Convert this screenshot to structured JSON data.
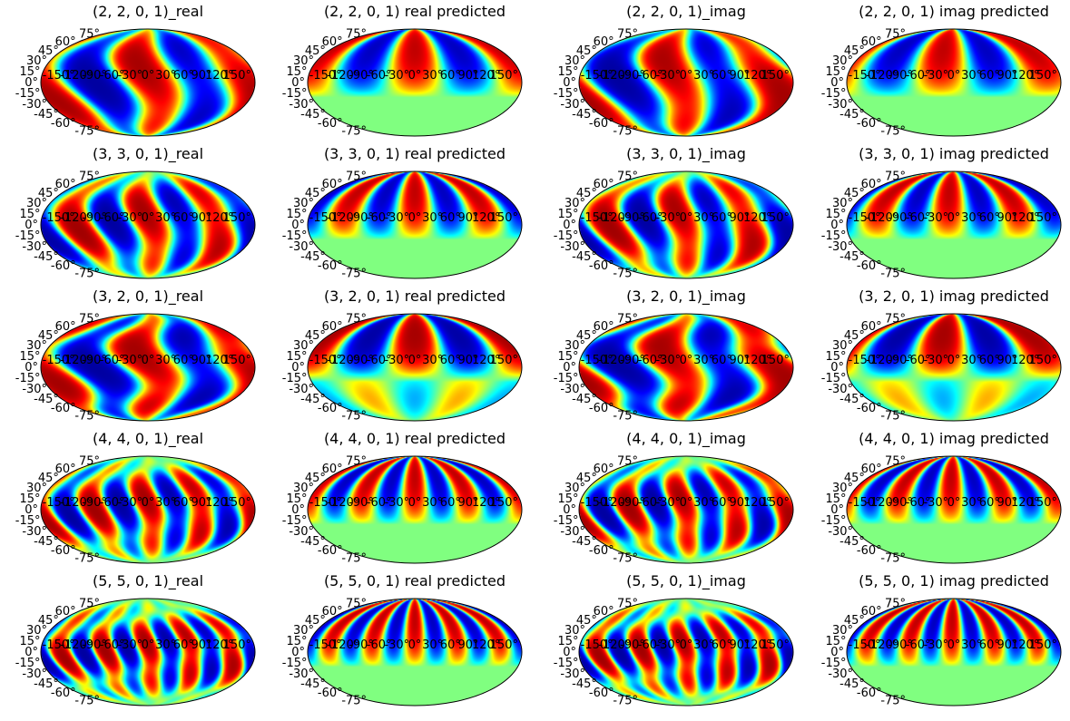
{
  "figure": {
    "colormap": "jet",
    "projection": "mollweide",
    "lat_ticks": [
      "75°",
      "60°",
      "45°",
      "30°",
      "15°",
      "0°",
      "-15°",
      "-30°",
      "-45°",
      "-60°",
      "-75°"
    ],
    "lon_ticks": [
      "-150°",
      "-120°",
      "-90°",
      "-60°",
      "-30°",
      "0°",
      "30°",
      "60°",
      "90°",
      "120°",
      "150°"
    ]
  },
  "chart_data": [
    {
      "type": "heatmap",
      "title": "(2, 2, 0, 1)_real",
      "l": 2,
      "m": 2,
      "part": "real",
      "predicted": false
    },
    {
      "type": "heatmap",
      "title": "(2, 2, 0, 1) real predicted",
      "l": 2,
      "m": 2,
      "part": "real",
      "predicted": true
    },
    {
      "type": "heatmap",
      "title": "(2, 2, 0, 1)_imag",
      "l": 2,
      "m": 2,
      "part": "imag",
      "predicted": false
    },
    {
      "type": "heatmap",
      "title": "(2, 2, 0, 1) imag predicted",
      "l": 2,
      "m": 2,
      "part": "imag",
      "predicted": true
    },
    {
      "type": "heatmap",
      "title": "(3, 3, 0, 1)_real",
      "l": 3,
      "m": 3,
      "part": "real",
      "predicted": false
    },
    {
      "type": "heatmap",
      "title": "(3, 3, 0, 1) real predicted",
      "l": 3,
      "m": 3,
      "part": "real",
      "predicted": true
    },
    {
      "type": "heatmap",
      "title": "(3, 3, 0, 1)_imag",
      "l": 3,
      "m": 3,
      "part": "imag",
      "predicted": false
    },
    {
      "type": "heatmap",
      "title": "(3, 3, 0, 1) imag predicted",
      "l": 3,
      "m": 3,
      "part": "imag",
      "predicted": true
    },
    {
      "type": "heatmap",
      "title": "(3, 2, 0, 1)_real",
      "l": 3,
      "m": 2,
      "part": "real",
      "predicted": false
    },
    {
      "type": "heatmap",
      "title": "(3, 2, 0, 1) real predicted",
      "l": 3,
      "m": 2,
      "part": "real",
      "predicted": true
    },
    {
      "type": "heatmap",
      "title": "(3, 2, 0, 1)_imag",
      "l": 3,
      "m": 2,
      "part": "imag",
      "predicted": false
    },
    {
      "type": "heatmap",
      "title": "(3, 2, 0, 1) imag predicted",
      "l": 3,
      "m": 2,
      "part": "imag",
      "predicted": true
    },
    {
      "type": "heatmap",
      "title": "(4, 4, 0, 1)_real",
      "l": 4,
      "m": 4,
      "part": "real",
      "predicted": false
    },
    {
      "type": "heatmap",
      "title": "(4, 4, 0, 1) real predicted",
      "l": 4,
      "m": 4,
      "part": "real",
      "predicted": true
    },
    {
      "type": "heatmap",
      "title": "(4, 4, 0, 1)_imag",
      "l": 4,
      "m": 4,
      "part": "imag",
      "predicted": false
    },
    {
      "type": "heatmap",
      "title": "(4, 4, 0, 1) imag predicted",
      "l": 4,
      "m": 4,
      "part": "imag",
      "predicted": true
    },
    {
      "type": "heatmap",
      "title": "(5, 5, 0, 1)_real",
      "l": 5,
      "m": 5,
      "part": "real",
      "predicted": false
    },
    {
      "type": "heatmap",
      "title": "(5, 5, 0, 1) real predicted",
      "l": 5,
      "m": 5,
      "part": "real",
      "predicted": true
    },
    {
      "type": "heatmap",
      "title": "(5, 5, 0, 1)_imag",
      "l": 5,
      "m": 5,
      "part": "imag",
      "predicted": false
    },
    {
      "type": "heatmap",
      "title": "(5, 5, 0, 1) imag predicted",
      "l": 5,
      "m": 5,
      "part": "imag",
      "predicted": true
    }
  ]
}
